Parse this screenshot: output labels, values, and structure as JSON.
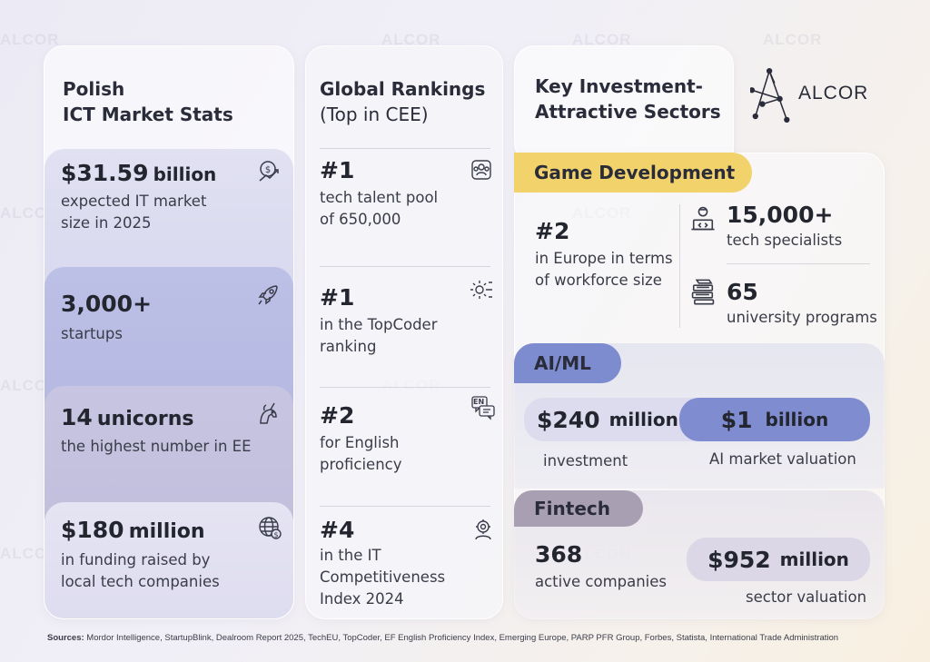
{
  "brand": {
    "logo_text": "ALCOR",
    "watermark": "ALCOR"
  },
  "ict": {
    "title_line1": "Polish",
    "title_line2": "ICT Market Stats",
    "stats": [
      {
        "value": "$31.59",
        "unit": "billion",
        "desc_line1": "expected IT market",
        "desc_line2": "size in 2025",
        "icon": "dollar-growth-icon"
      },
      {
        "value": "3,000+",
        "unit": "",
        "desc_line1": "startups",
        "desc_line2": "",
        "icon": "rocket-icon"
      },
      {
        "value": "14",
        "unit": "unicorns",
        "desc_line1": "the highest number in EE",
        "desc_line2": "",
        "icon": "unicorn-icon"
      },
      {
        "value": "$180",
        "unit": "million",
        "desc_line1": "in funding raised by",
        "desc_line2": "local tech companies",
        "icon": "globe-dollar-icon"
      }
    ]
  },
  "rankings": {
    "title_line1": "Global Rankings",
    "title_line2": "(Top in CEE)",
    "items": [
      {
        "rank": "#1",
        "desc_line1": "tech talent pool",
        "desc_line2": "of 650,000",
        "desc_line3": "",
        "icon": "team-icon"
      },
      {
        "rank": "#1",
        "desc_line1": "in the TopCoder",
        "desc_line2": "ranking",
        "desc_line3": "",
        "icon": "gear-head-icon"
      },
      {
        "rank": "#2",
        "desc_line1": "for English",
        "desc_line2": "proficiency",
        "desc_line3": "",
        "icon": "language-icon",
        "icon_text": "EN"
      },
      {
        "rank": "#4",
        "desc_line1": "in the IT",
        "desc_line2": "Competitiveness",
        "desc_line3": "Index 2024",
        "icon": "person-gear-icon"
      }
    ]
  },
  "sectors": {
    "title_line1": "Key Investment-",
    "title_line2": "Attractive Sectors",
    "game": {
      "tag": "Game Development",
      "rank": "#2",
      "rank_desc_line1": "in Europe in terms",
      "rank_desc_line2": "of workforce size",
      "specialists_value": "15,000+",
      "specialists_label": "tech specialists",
      "programs_value": "65",
      "programs_label": "university programs"
    },
    "ai": {
      "tag": "AI/ML",
      "investment_value": "$240",
      "investment_unit": "million",
      "investment_label": "investment",
      "valuation_value": "$1",
      "valuation_unit": "billion",
      "valuation_label": "AI market valuation"
    },
    "fintech": {
      "tag": "Fintech",
      "companies_value": "368",
      "companies_label": "active companies",
      "valuation_value": "$952",
      "valuation_unit": "million",
      "valuation_label": "sector valuation"
    }
  },
  "footer": {
    "sources_label": "Sources:",
    "sources_text": "Mordor Intelligence, StartupBlink, Dealroom Report 2025, TechEU, TopCoder, EF English Proficiency Index, Emerging Europe, PARP PFR Group, Forbes, Statista, International Trade Administration"
  },
  "colors": {
    "game_tag": "#f2d36b",
    "ai_tag": "#7d8bcf",
    "fintech_tag": "#a99fb3",
    "panel_1": "#dcdcf0",
    "panel_2": "#bfc3e8",
    "panel_3": "#cdcbe3",
    "panel_4": "#e4e3f2"
  }
}
